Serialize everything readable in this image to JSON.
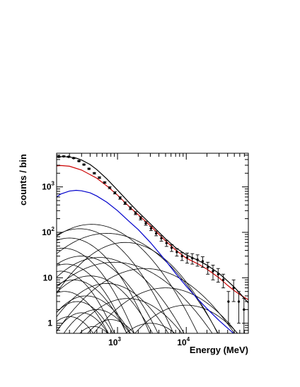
{
  "chart_data": {
    "type": "line",
    "title": "",
    "xlabel": "Energy (MeV)",
    "ylabel": "counts / bin",
    "x_scale": "log",
    "y_scale": "log",
    "xlim": [
      130,
      80000
    ],
    "ylim": [
      0.6,
      5500
    ],
    "x_ticks": [
      {
        "value": 1000,
        "base": "10",
        "exp": "3"
      },
      {
        "value": 10000,
        "base": "10",
        "exp": "4"
      }
    ],
    "y_ticks": [
      {
        "value": 1,
        "base": "1",
        "exp": ""
      },
      {
        "value": 10,
        "base": "10",
        "exp": ""
      },
      {
        "value": 100,
        "base": "10",
        "exp": "2"
      },
      {
        "value": 1000,
        "base": "10",
        "exp": "3"
      }
    ],
    "colors": {
      "total": "#000000",
      "red": "#cc0000",
      "blue": "#0000cc",
      "components": "#000000"
    },
    "data_points": {
      "name": "data",
      "x": [
        140,
        165,
        195,
        230,
        275,
        325,
        385,
        460,
        545,
        650,
        770,
        915,
        1090,
        1290,
        1540,
        1830,
        2170,
        2580,
        3070,
        3650,
        4340,
        5160,
        6130,
        7290,
        8670,
        10300,
        12250,
        14560,
        17310,
        20580,
        24460,
        29080,
        34570,
        41100,
        48860,
        58080,
        69050
      ],
      "y": [
        4600,
        4700,
        4600,
        4300,
        3700,
        3100,
        2500,
        2000,
        1600,
        1250,
        960,
        740,
        570,
        440,
        340,
        265,
        205,
        158,
        122,
        95,
        74,
        58,
        46,
        37,
        30,
        28,
        27,
        25,
        23,
        17,
        14,
        12,
        9,
        3,
        6,
        3,
        2
      ],
      "err": [
        120,
        120,
        120,
        110,
        100,
        90,
        80,
        70,
        60,
        50,
        45,
        40,
        35,
        28,
        24,
        20,
        17,
        15,
        13,
        11,
        10,
        9,
        8,
        7,
        6,
        7,
        7,
        7,
        6,
        5,
        5,
        4,
        3,
        2,
        3,
        2,
        1.5
      ]
    },
    "total_model": {
      "x": [
        130,
        160,
        200,
        250,
        300,
        400,
        500,
        700,
        1000,
        1500,
        2000,
        3000,
        5000,
        7000,
        10000,
        15000,
        20000,
        30000,
        40000,
        50000,
        60000,
        70000,
        80000
      ],
      "y": [
        4550,
        4650,
        4550,
        4300,
        3900,
        3100,
        2400,
        1500,
        850,
        440,
        280,
        155,
        72,
        46,
        32,
        24,
        19,
        12.5,
        8.5,
        6.2,
        4.6,
        3.5,
        2.8
      ]
    },
    "series": [
      {
        "color": "red",
        "x": [
          130,
          150,
          200,
          300,
          500,
          700,
          1000,
          1500,
          2000,
          3000,
          5000,
          7000,
          10000,
          15000,
          20000,
          30000,
          40000,
          50000,
          60000,
          70000,
          80000
        ],
        "y": [
          2900,
          2950,
          2850,
          2350,
          1550,
          1050,
          660,
          360,
          245,
          140,
          65,
          41,
          27,
          20,
          15.5,
          10,
          6.8,
          5.2,
          4.3,
          3.7,
          3.3
        ]
      },
      {
        "color": "blue",
        "x": [
          130,
          150,
          200,
          250,
          300,
          400,
          500,
          700,
          1000,
          1500,
          2000,
          3000,
          5000,
          7000,
          10000,
          15000,
          20000,
          30000,
          40000,
          50000,
          55000
        ],
        "y": [
          600,
          700,
          810,
          840,
          820,
          740,
          630,
          460,
          300,
          170,
          115,
          60,
          24,
          12.5,
          6.5,
          3.3,
          2.1,
          1.15,
          0.78,
          0.58,
          0.5
        ]
      }
    ],
    "components": [
      {
        "amp": 150,
        "peak": 420,
        "w": 1.05
      },
      {
        "amp": 120,
        "peak": 280,
        "w": 0.95
      },
      {
        "amp": 95,
        "peak": 700,
        "w": 1.15
      },
      {
        "amp": 75,
        "peak": 200,
        "w": 0.85
      },
      {
        "amp": 60,
        "peak": 1300,
        "w": 1.0
      },
      {
        "amp": 45,
        "peak": 160,
        "w": 0.8
      },
      {
        "amp": 30,
        "peak": 300,
        "w": 0.9
      },
      {
        "amp": 28,
        "peak": 550,
        "w": 1.0
      },
      {
        "amp": 22,
        "peak": 900,
        "w": 1.2
      },
      {
        "amp": 20,
        "peak": 180,
        "w": 0.75
      },
      {
        "amp": 16,
        "peak": 2500,
        "w": 1.15
      },
      {
        "amp": 14,
        "peak": 150,
        "w": 0.7
      },
      {
        "amp": 11,
        "peak": 400,
        "w": 0.85
      },
      {
        "amp": 9,
        "peak": 230,
        "w": 0.75
      },
      {
        "amp": 7.5,
        "peak": 700,
        "w": 0.9
      },
      {
        "amp": 6,
        "peak": 5000,
        "w": 1.1
      },
      {
        "amp": 5,
        "peak": 170,
        "w": 0.7
      },
      {
        "amp": 4,
        "peak": 350,
        "w": 0.75
      },
      {
        "amp": 3.5,
        "peak": 1400,
        "w": 0.95
      },
      {
        "amp": 3,
        "peak": 260,
        "w": 0.65
      },
      {
        "amp": 2.5,
        "peak": 10000,
        "w": 1.0
      },
      {
        "amp": 2,
        "peak": 500,
        "w": 0.7
      },
      {
        "amp": 1.7,
        "peak": 300,
        "w": 0.6
      },
      {
        "amp": 1.4,
        "peak": 200,
        "w": 0.6
      },
      {
        "amp": 1.2,
        "peak": 800,
        "w": 0.65
      },
      {
        "amp": 1.0,
        "peak": 3000,
        "w": 0.8
      },
      {
        "amp": 0.85,
        "peak": 450,
        "w": 0.55
      }
    ],
    "grid": false,
    "legend": "none"
  }
}
